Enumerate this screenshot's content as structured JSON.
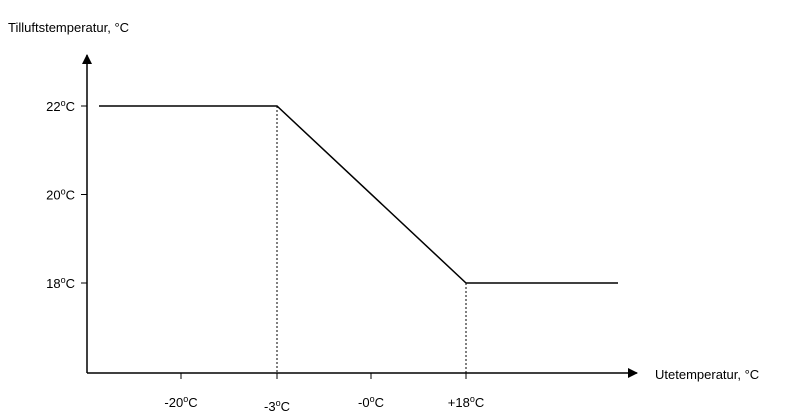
{
  "chart_data": {
    "type": "line",
    "ylabel": "Tilluftstemperatur, °C",
    "xlabel": "Utetemperatur, °C",
    "x_ticks": [
      {
        "value": -20,
        "label": "-20°C"
      },
      {
        "value": -3,
        "label": "-3°C"
      },
      {
        "value": 0,
        "label": "-0°C"
      },
      {
        "value": 18,
        "label": "+18°C"
      }
    ],
    "y_ticks": [
      {
        "value": 22,
        "label": "22°C"
      },
      {
        "value": 20,
        "label": "20°C"
      },
      {
        "value": 18,
        "label": "18°C"
      }
    ],
    "series": [
      {
        "x": [
          -28,
          -3,
          18,
          32
        ],
        "y": [
          22,
          22,
          18,
          18
        ]
      }
    ],
    "reference_lines": [
      {
        "x": -3,
        "y": 22
      },
      {
        "x": 18,
        "y": 18
      }
    ],
    "xlim": [
      -28,
      32
    ],
    "ylim": [
      16,
      22
    ],
    "line_color": "#000000",
    "grid": false
  }
}
